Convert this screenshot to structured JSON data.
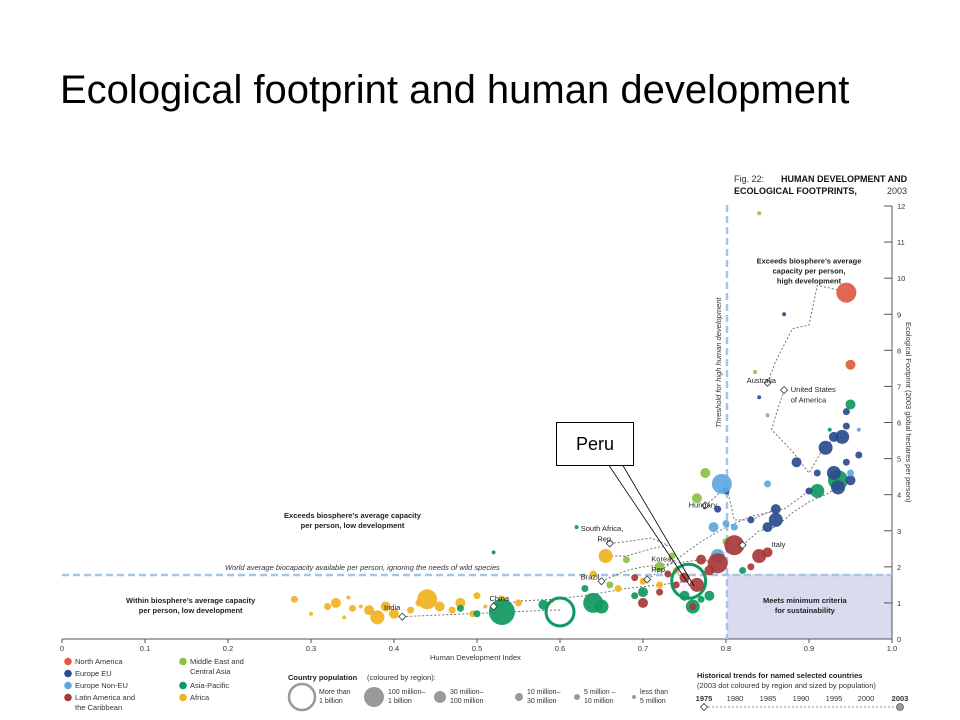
{
  "slide": {
    "title": "Ecological footprint and human development",
    "callout": "Peru"
  },
  "chart_data": {
    "type": "scatter",
    "fig_label": "Fig. 22:",
    "title_lines": [
      "HUMAN DEVELOPMENT AND",
      "ECOLOGICAL FOOTPRINTS,"
    ],
    "title_year": "2003",
    "xlabel": "Human Development Index",
    "ylabel": "Ecological Footprint (2003 global hectares per person)",
    "xlim": [
      0,
      1.0
    ],
    "ylim": [
      0,
      12
    ],
    "x_ticks": [
      "0",
      "0.1",
      "0.2",
      "0.3",
      "0.4",
      "0.5",
      "0.6",
      "0.7",
      "0.8",
      "0.9",
      "1.0"
    ],
    "y_ticks": [
      "0",
      "1",
      "2",
      "3",
      "4",
      "5",
      "6",
      "7",
      "8",
      "9",
      "10",
      "11",
      "12"
    ],
    "thresholds": {
      "hdi": 0.8,
      "hdi_label": "Threshold for high human development",
      "biocapacity": 1.8,
      "biocapacity_label": "World average biocapacity available per person, ignoring the needs of wild species"
    },
    "quadrant_labels": [
      {
        "lines": [
          "Exceeds biosphere’s average",
          "capacity per person,",
          "high development"
        ],
        "x": 0.9,
        "y": 10.4
      },
      {
        "lines": [
          "Exceeds biosphere’s average capacity",
          "per person, low development"
        ],
        "x": 0.35,
        "y": 3.35
      },
      {
        "lines": [
          "Within biosphere’s average capacity",
          "per person, low development"
        ],
        "x": 0.155,
        "y": 1.0
      },
      {
        "lines": [
          "Meets minimum criteria",
          "for sustainability"
        ],
        "x": 0.895,
        "y": 1.0
      }
    ],
    "regions": [
      {
        "name": "North America",
        "color": "#e05a43"
      },
      {
        "name": "Europe EU",
        "color": "#2b4c8f"
      },
      {
        "name": "Europe Non-EU",
        "color": "#5ea8e0"
      },
      {
        "name": "Latin America and the Caribbean",
        "color": "#a8383a"
      },
      {
        "name": "Middle East and Central Asia",
        "color": "#8cc04a"
      },
      {
        "name": "Asia-Pacific",
        "color": "#0f9860"
      },
      {
        "name": "Africa",
        "color": "#f0b321"
      }
    ],
    "population_legend": {
      "title": "Country population",
      "subtitle": "(coloured by region):",
      "sizes": [
        "More than 1 billion",
        "100 million– 1 billion",
        "30 million– 100 million",
        "10 million– 30 million",
        "5 million – 10 million",
        "less than 5 million"
      ]
    },
    "trend_legend": {
      "title": "Historical trends for named selected countries",
      "subtitle": "(2003 dot coloured by region and sized by population)",
      "years": [
        "1975",
        "1980",
        "1985",
        "1990",
        "1995",
        "2000",
        "2003"
      ]
    },
    "points": [
      {
        "x": 0.28,
        "y": 1.1,
        "r": 1,
        "c": 6
      },
      {
        "x": 0.3,
        "y": 0.7,
        "r": 0,
        "c": 6
      },
      {
        "x": 0.32,
        "y": 0.9,
        "r": 1,
        "c": 6
      },
      {
        "x": 0.33,
        "y": 1.0,
        "r": 2,
        "c": 6
      },
      {
        "x": 0.34,
        "y": 0.6,
        "r": 0,
        "c": 6
      },
      {
        "x": 0.345,
        "y": 1.15,
        "r": 0,
        "c": 6
      },
      {
        "x": 0.35,
        "y": 0.85,
        "r": 1,
        "c": 6
      },
      {
        "x": 0.36,
        "y": 0.9,
        "r": 0,
        "c": 6
      },
      {
        "x": 0.37,
        "y": 0.8,
        "r": 2,
        "c": 6
      },
      {
        "x": 0.38,
        "y": 0.6,
        "r": 3,
        "c": 6
      },
      {
        "x": 0.39,
        "y": 0.9,
        "r": 2,
        "c": 6
      },
      {
        "x": 0.4,
        "y": 0.7,
        "r": 2,
        "c": 6
      },
      {
        "x": 0.41,
        "y": 0.6,
        "r": 0,
        "c": 6
      },
      {
        "x": 0.42,
        "y": 0.8,
        "r": 1,
        "c": 6
      },
      {
        "x": 0.43,
        "y": 1.0,
        "r": 1,
        "c": 6
      },
      {
        "x": 0.44,
        "y": 1.1,
        "r": 4,
        "c": 6
      },
      {
        "x": 0.455,
        "y": 0.9,
        "r": 2,
        "c": 6
      },
      {
        "x": 0.47,
        "y": 0.8,
        "r": 1,
        "c": 6
      },
      {
        "x": 0.48,
        "y": 1.0,
        "r": 2,
        "c": 6
      },
      {
        "x": 0.495,
        "y": 0.7,
        "r": 1,
        "c": 6
      },
      {
        "x": 0.5,
        "y": 1.2,
        "r": 1,
        "c": 6
      },
      {
        "x": 0.51,
        "y": 0.9,
        "r": 0,
        "c": 6
      },
      {
        "x": 0.53,
        "y": 1.1,
        "r": 1,
        "c": 6
      },
      {
        "x": 0.55,
        "y": 1.0,
        "r": 1,
        "c": 6
      },
      {
        "x": 0.59,
        "y": 1.05,
        "r": 0,
        "c": 6
      },
      {
        "x": 0.64,
        "y": 1.8,
        "r": 1,
        "c": 6
      },
      {
        "x": 0.655,
        "y": 2.3,
        "r": 3,
        "c": 6
      },
      {
        "x": 0.67,
        "y": 1.4,
        "r": 1,
        "c": 6
      },
      {
        "x": 0.7,
        "y": 1.6,
        "r": 1,
        "c": 6
      },
      {
        "x": 0.72,
        "y": 1.5,
        "r": 1,
        "c": 6
      },
      {
        "x": 0.74,
        "y": 1.9,
        "r": 1,
        "c": 6
      },
      {
        "x": 0.48,
        "y": 0.85,
        "r": 1,
        "c": 5
      },
      {
        "x": 0.5,
        "y": 0.7,
        "r": 1,
        "c": 5
      },
      {
        "x": 0.53,
        "y": 0.75,
        "r": 5,
        "c": 5
      },
      {
        "x": 0.58,
        "y": 0.95,
        "r": 2,
        "c": 5
      },
      {
        "x": 0.52,
        "y": 2.4,
        "r": 0,
        "c": 5
      },
      {
        "x": 0.6,
        "y": 0.75,
        "r": 7,
        "c": 5,
        "ring": true
      },
      {
        "x": 0.63,
        "y": 1.4,
        "r": 1,
        "c": 5
      },
      {
        "x": 0.64,
        "y": 1.0,
        "r": 4,
        "c": 5
      },
      {
        "x": 0.65,
        "y": 0.9,
        "r": 3,
        "c": 5
      },
      {
        "x": 0.69,
        "y": 1.2,
        "r": 1,
        "c": 5
      },
      {
        "x": 0.7,
        "y": 1.3,
        "r": 2,
        "c": 5
      },
      {
        "x": 0.75,
        "y": 1.2,
        "r": 2,
        "c": 5
      },
      {
        "x": 0.76,
        "y": 0.9,
        "r": 3,
        "c": 5
      },
      {
        "x": 0.755,
        "y": 1.6,
        "r": 6,
        "c": 5,
        "ring": true
      },
      {
        "x": 0.77,
        "y": 1.1,
        "r": 1,
        "c": 5
      },
      {
        "x": 0.78,
        "y": 1.2,
        "r": 2,
        "c": 5
      },
      {
        "x": 0.82,
        "y": 1.9,
        "r": 1,
        "c": 5
      },
      {
        "x": 0.935,
        "y": 4.4,
        "r": 4,
        "c": 5
      },
      {
        "x": 0.95,
        "y": 6.5,
        "r": 2,
        "c": 5
      },
      {
        "x": 0.91,
        "y": 4.1,
        "r": 3,
        "c": 5
      },
      {
        "x": 0.62,
        "y": 3.1,
        "r": 0,
        "c": 5
      },
      {
        "x": 0.925,
        "y": 5.8,
        "r": 0,
        "c": 5
      },
      {
        "x": 0.68,
        "y": 2.2,
        "r": 1,
        "c": 4
      },
      {
        "x": 0.72,
        "y": 2.0,
        "r": 2,
        "c": 4
      },
      {
        "x": 0.735,
        "y": 2.3,
        "r": 1,
        "c": 4
      },
      {
        "x": 0.765,
        "y": 3.9,
        "r": 2,
        "c": 4
      },
      {
        "x": 0.775,
        "y": 4.6,
        "r": 2,
        "c": 4
      },
      {
        "x": 0.84,
        "y": 11.8,
        "r": 0,
        "c": 4
      },
      {
        "x": 0.85,
        "y": 6.2,
        "r": 0,
        "c": 4
      },
      {
        "x": 0.835,
        "y": 7.4,
        "r": 0,
        "c": 4
      },
      {
        "x": 0.66,
        "y": 1.5,
        "r": 1,
        "c": 4
      },
      {
        "x": 0.79,
        "y": 2.2,
        "r": 1,
        "c": 4
      },
      {
        "x": 0.8,
        "y": 2.7,
        "r": 1,
        "c": 4
      },
      {
        "x": 0.87,
        "y": 9.0,
        "r": 0,
        "c": 1
      },
      {
        "x": 0.885,
        "y": 4.9,
        "r": 2,
        "c": 1
      },
      {
        "x": 0.9,
        "y": 4.1,
        "r": 1,
        "c": 1
      },
      {
        "x": 0.92,
        "y": 5.3,
        "r": 3,
        "c": 1
      },
      {
        "x": 0.93,
        "y": 5.6,
        "r": 2,
        "c": 1
      },
      {
        "x": 0.94,
        "y": 5.6,
        "r": 3,
        "c": 1
      },
      {
        "x": 0.945,
        "y": 6.3,
        "r": 1,
        "c": 1
      },
      {
        "x": 0.93,
        "y": 4.6,
        "r": 3,
        "c": 1
      },
      {
        "x": 0.935,
        "y": 4.2,
        "r": 3,
        "c": 1
      },
      {
        "x": 0.95,
        "y": 4.4,
        "r": 2,
        "c": 1
      },
      {
        "x": 0.945,
        "y": 5.9,
        "r": 1,
        "c": 1
      },
      {
        "x": 0.86,
        "y": 3.3,
        "r": 3,
        "c": 1
      },
      {
        "x": 0.86,
        "y": 3.6,
        "r": 2,
        "c": 1
      },
      {
        "x": 0.85,
        "y": 3.1,
        "r": 2,
        "c": 1
      },
      {
        "x": 0.83,
        "y": 3.3,
        "r": 1,
        "c": 1
      },
      {
        "x": 0.91,
        "y": 4.6,
        "r": 1,
        "c": 1
      },
      {
        "x": 0.945,
        "y": 4.9,
        "r": 1,
        "c": 1
      },
      {
        "x": 0.96,
        "y": 5.1,
        "r": 1,
        "c": 1
      },
      {
        "x": 0.8,
        "y": 4.1,
        "r": 1,
        "c": 1
      },
      {
        "x": 0.79,
        "y": 3.6,
        "r": 1,
        "c": 1
      },
      {
        "x": 0.84,
        "y": 6.7,
        "r": 0,
        "c": 1
      },
      {
        "x": 0.795,
        "y": 4.3,
        "r": 4,
        "c": 2
      },
      {
        "x": 0.8,
        "y": 3.2,
        "r": 1,
        "c": 2
      },
      {
        "x": 0.785,
        "y": 3.1,
        "r": 2,
        "c": 2
      },
      {
        "x": 0.79,
        "y": 2.3,
        "r": 3,
        "c": 2
      },
      {
        "x": 0.81,
        "y": 3.1,
        "r": 1,
        "c": 2
      },
      {
        "x": 0.95,
        "y": 4.6,
        "r": 1,
        "c": 2
      },
      {
        "x": 0.96,
        "y": 5.8,
        "r": 0,
        "c": 2
      },
      {
        "x": 0.85,
        "y": 4.3,
        "r": 1,
        "c": 2
      },
      {
        "x": 0.945,
        "y": 9.6,
        "r": 4,
        "c": 0
      },
      {
        "x": 0.95,
        "y": 7.6,
        "r": 2,
        "c": 0
      },
      {
        "x": 0.765,
        "y": 1.5,
        "r": 3,
        "c": 3
      },
      {
        "x": 0.79,
        "y": 2.1,
        "r": 4,
        "c": 3
      },
      {
        "x": 0.81,
        "y": 2.6,
        "r": 4,
        "c": 3
      },
      {
        "x": 0.84,
        "y": 2.3,
        "r": 3,
        "c": 3
      },
      {
        "x": 0.75,
        "y": 1.7,
        "r": 2,
        "c": 3
      },
      {
        "x": 0.76,
        "y": 0.9,
        "r": 1,
        "c": 3
      },
      {
        "x": 0.74,
        "y": 1.5,
        "r": 1,
        "c": 3
      },
      {
        "x": 0.72,
        "y": 1.3,
        "r": 1,
        "c": 3
      },
      {
        "x": 0.78,
        "y": 1.9,
        "r": 2,
        "c": 3
      },
      {
        "x": 0.7,
        "y": 1.0,
        "r": 2,
        "c": 3
      },
      {
        "x": 0.77,
        "y": 2.2,
        "r": 2,
        "c": 3
      },
      {
        "x": 0.69,
        "y": 1.7,
        "r": 1,
        "c": 3
      },
      {
        "x": 0.85,
        "y": 2.4,
        "r": 2,
        "c": 3
      },
      {
        "x": 0.83,
        "y": 2.0,
        "r": 1,
        "c": 3
      },
      {
        "x": 0.73,
        "y": 1.8,
        "r": 1,
        "c": 3
      }
    ],
    "trends": [
      {
        "name": "India",
        "points": [
          [
            0.41,
            0.62
          ],
          [
            0.44,
            0.65
          ],
          [
            0.49,
            0.7
          ],
          [
            0.54,
            0.75
          ],
          [
            0.57,
            0.78
          ],
          [
            0.59,
            0.8
          ],
          [
            0.6,
            0.8
          ]
        ]
      },
      {
        "name": "China",
        "points": [
          [
            0.52,
            0.9
          ],
          [
            0.55,
            1.05
          ],
          [
            0.59,
            1.1
          ],
          [
            0.63,
            1.2
          ],
          [
            0.68,
            1.4
          ],
          [
            0.72,
            1.5
          ],
          [
            0.755,
            1.6
          ]
        ]
      },
      {
        "name": "Brazil",
        "points": [
          [
            0.65,
            1.6
          ],
          [
            0.68,
            1.9
          ],
          [
            0.7,
            2.0
          ],
          [
            0.72,
            2.05
          ],
          [
            0.74,
            2.1
          ],
          [
            0.77,
            2.2
          ],
          [
            0.79,
            2.1
          ]
        ]
      },
      {
        "name": "South Africa, Rep.",
        "points": [
          [
            0.66,
            2.65
          ],
          [
            0.68,
            2.7
          ],
          [
            0.71,
            2.8
          ],
          [
            0.73,
            2.6
          ],
          [
            0.71,
            2.5
          ],
          [
            0.68,
            2.3
          ],
          [
            0.655,
            2.3
          ]
        ]
      },
      {
        "name": "Korea, Rep.",
        "points": [
          [
            0.705,
            1.65
          ],
          [
            0.74,
            2.2
          ],
          [
            0.77,
            2.7
          ],
          [
            0.8,
            3.1
          ],
          [
            0.83,
            3.4
          ],
          [
            0.87,
            3.6
          ],
          [
            0.9,
            4.1
          ]
        ]
      },
      {
        "name": "Hungary",
        "points": [
          [
            0.775,
            3.7
          ],
          [
            0.79,
            4.0
          ],
          [
            0.8,
            4.3
          ],
          [
            0.81,
            3.3
          ],
          [
            0.83,
            3.3
          ],
          [
            0.85,
            3.5
          ],
          [
            0.86,
            3.6
          ]
        ]
      },
      {
        "name": "Italy",
        "points": [
          [
            0.82,
            2.6
          ],
          [
            0.84,
            3.0
          ],
          [
            0.86,
            3.1
          ],
          [
            0.88,
            3.5
          ],
          [
            0.9,
            3.8
          ],
          [
            0.92,
            4.0
          ],
          [
            0.935,
            4.2
          ]
        ]
      },
      {
        "name": "Australia",
        "points": [
          [
            0.85,
            7.1
          ],
          [
            0.86,
            7.7
          ],
          [
            0.88,
            8.6
          ],
          [
            0.9,
            8.7
          ],
          [
            0.91,
            9.8
          ],
          [
            0.93,
            9.7
          ],
          [
            0.945,
            9.6
          ]
        ]
      },
      {
        "name": "United States of America",
        "points": [
          [
            0.87,
            6.9
          ],
          [
            0.86,
            6.2
          ],
          [
            0.855,
            5.8
          ],
          [
            0.88,
            5.2
          ],
          [
            0.9,
            4.6
          ],
          [
            0.92,
            5.4
          ],
          [
            0.94,
            5.6
          ]
        ]
      }
    ],
    "labels": [
      {
        "text": "India",
        "x": 0.388,
        "y": 0.8
      },
      {
        "text": "China",
        "x": 0.515,
        "y": 1.05
      },
      {
        "text": "Brazil",
        "x": 0.625,
        "y": 1.65
      },
      {
        "text": "South Africa,",
        "x": 0.625,
        "y": 3.0
      },
      {
        "text": "Rep.",
        "x": 0.645,
        "y": 2.7
      },
      {
        "text": "Korea,",
        "x": 0.71,
        "y": 2.15
      },
      {
        "text": "Rep.",
        "x": 0.71,
        "y": 1.85
      },
      {
        "text": "Hungary",
        "x": 0.755,
        "y": 3.65
      },
      {
        "text": "Italy",
        "x": 0.855,
        "y": 2.55
      },
      {
        "text": "Australia",
        "x": 0.825,
        "y": 7.1
      },
      {
        "text": "United States",
        "x": 0.878,
        "y": 6.85
      },
      {
        "text": "of America",
        "x": 0.878,
        "y": 6.55
      }
    ]
  }
}
